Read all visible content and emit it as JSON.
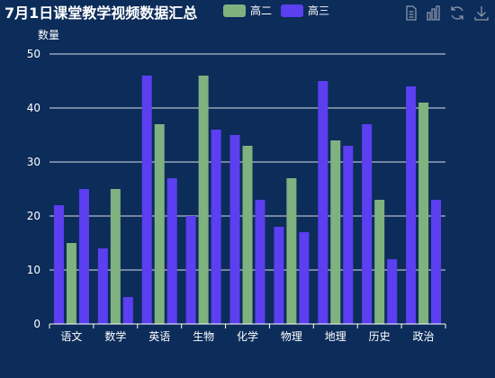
{
  "chart_data": {
    "type": "bar",
    "title": "7月1日课堂教学视频数据汇总",
    "ylabel": "数量",
    "xlabel": "",
    "ylim": [
      0,
      50
    ],
    "yticks": [
      0,
      10,
      20,
      30,
      40,
      50
    ],
    "grid": true,
    "legend_position": "top",
    "categories": [
      "语文",
      "数学",
      "英语",
      "生物",
      "化学",
      "物理",
      "地理",
      "历史",
      "政治"
    ],
    "series": [
      {
        "name": "",
        "color": "#5b3ff0",
        "values": [
          22,
          14,
          46,
          20,
          35,
          18,
          45,
          37,
          44
        ]
      },
      {
        "name": "高二",
        "color": "#7fb27f",
        "values": [
          15,
          25,
          37,
          46,
          33,
          27,
          34,
          23,
          41
        ]
      },
      {
        "name": "高三",
        "color": "#5b3ff0",
        "values": [
          25,
          5,
          27,
          36,
          23,
          17,
          33,
          12,
          23
        ]
      }
    ],
    "legend": [
      {
        "name": "高二",
        "color": "#7fb27f"
      },
      {
        "name": "高三",
        "color": "#5b3ff0"
      }
    ]
  },
  "toolbox": {
    "icons": [
      "data-view-icon",
      "bar-chart-icon",
      "restore-icon",
      "download-icon"
    ]
  }
}
